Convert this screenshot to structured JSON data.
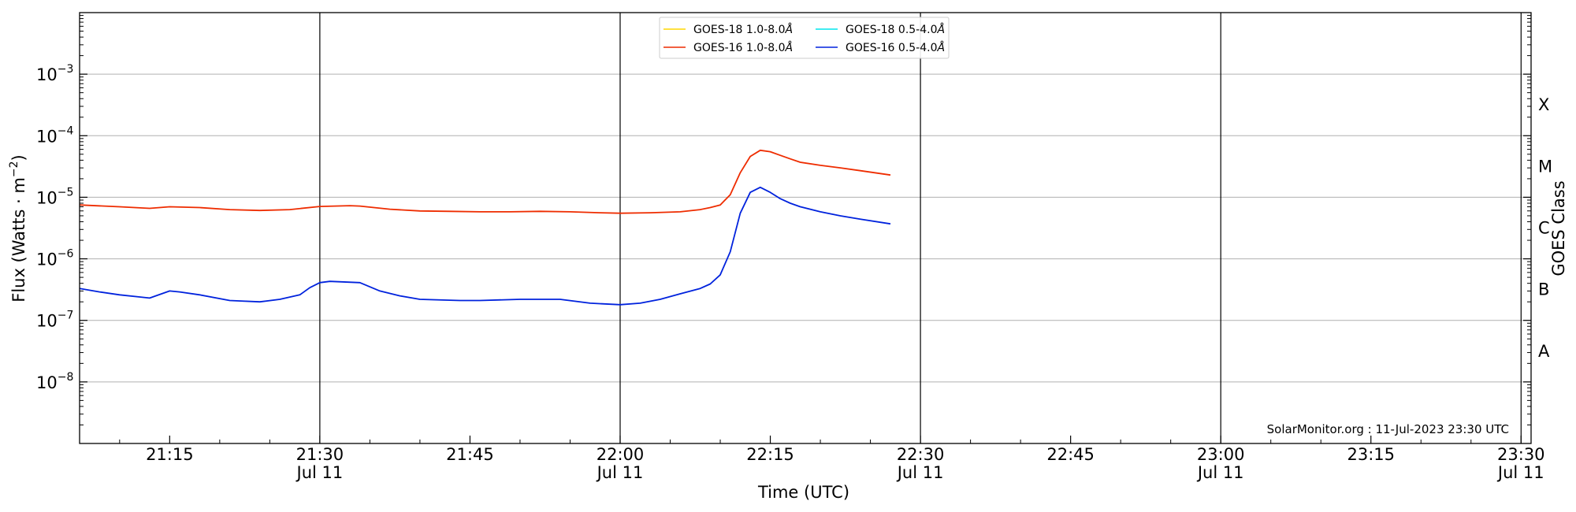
{
  "chart_data": {
    "type": "line",
    "xlabel": "Time (UTC)",
    "ylabel_main": "Flux (Watts · m",
    "ylabel_sup": "−2",
    "ylabel_close": ")",
    "y2label": "GOES Class",
    "yscale": "log",
    "xlim": [
      "21:06",
      "23:31"
    ],
    "ylim": [
      1e-09,
      0.01
    ],
    "grid": "horizontal",
    "legend_position": "top-center",
    "credit": "SolarMonitor.org : 11-Jul-2023 23:30 UTC",
    "x_ticks": [
      {
        "time": "21:15",
        "label": "21:15",
        "sublabel": ""
      },
      {
        "time": "21:30",
        "label": "21:30",
        "sublabel": "Jul 11"
      },
      {
        "time": "21:45",
        "label": "21:45",
        "sublabel": ""
      },
      {
        "time": "22:00",
        "label": "22:00",
        "sublabel": "Jul 11"
      },
      {
        "time": "22:15",
        "label": "22:15",
        "sublabel": ""
      },
      {
        "time": "22:30",
        "label": "22:30",
        "sublabel": "Jul 11"
      },
      {
        "time": "22:45",
        "label": "22:45",
        "sublabel": ""
      },
      {
        "time": "23:00",
        "label": "23:00",
        "sublabel": "Jul 11"
      },
      {
        "time": "23:15",
        "label": "23:15",
        "sublabel": ""
      },
      {
        "time": "23:30",
        "label": "23:30",
        "sublabel": "Jul 11"
      }
    ],
    "vertical_lines": [
      "21:30",
      "22:00",
      "22:30",
      "23:00",
      "23:30"
    ],
    "y_ticks": [
      {
        "value": 1e-08,
        "base": "10",
        "exp": "−8"
      },
      {
        "value": 1e-07,
        "base": "10",
        "exp": "−7"
      },
      {
        "value": 1e-06,
        "base": "10",
        "exp": "−6"
      },
      {
        "value": 1e-05,
        "base": "10",
        "exp": "−5"
      },
      {
        "value": 0.0001,
        "base": "10",
        "exp": "−4"
      },
      {
        "value": 0.001,
        "base": "10",
        "exp": "−3"
      }
    ],
    "goes_classes": [
      {
        "label": "A",
        "value": 3.16e-08
      },
      {
        "label": "B",
        "value": 3.16e-07
      },
      {
        "label": "C",
        "value": 3.16e-06
      },
      {
        "label": "M",
        "value": 3.16e-05
      },
      {
        "label": "X",
        "value": 0.000316
      }
    ],
    "legend": [
      {
        "label": "GOES-18 1.0-8.0",
        "unit": "Å",
        "color": "#ffd700"
      },
      {
        "label": "GOES-18 0.5-4.0",
        "unit": "Å",
        "color": "#00e5ee"
      },
      {
        "label": "GOES-16 1.0-8.0",
        "unit": "Å",
        "color": "#ee2c00"
      },
      {
        "label": "GOES-16 0.5-4.0",
        "unit": "Å",
        "color": "#0022dd"
      }
    ],
    "series": [
      {
        "name": "GOES-16 1.0-8.0Å",
        "color": "#ee2c00",
        "x": [
          "21:06",
          "21:10",
          "21:13",
          "21:15",
          "21:18",
          "21:21",
          "21:24",
          "21:27",
          "21:30",
          "21:33",
          "21:34",
          "21:37",
          "21:40",
          "21:43",
          "21:46",
          "21:49",
          "21:52",
          "21:55",
          "21:58",
          "22:00",
          "22:03",
          "22:06",
          "22:08",
          "22:09",
          "22:10",
          "22:11",
          "22:12",
          "22:13",
          "22:14",
          "22:15",
          "22:16",
          "22:17",
          "22:18",
          "22:20",
          "22:22",
          "22:24",
          "22:27"
        ],
        "values": [
          7.5e-06,
          7e-06,
          6.6e-06,
          7e-06,
          6.8e-06,
          6.3e-06,
          6.1e-06,
          6.3e-06,
          7.1e-06,
          7.3e-06,
          7.2e-06,
          6.4e-06,
          6e-06,
          5.9e-06,
          5.8e-06,
          5.8e-06,
          5.9e-06,
          5.8e-06,
          5.6e-06,
          5.5e-06,
          5.6e-06,
          5.8e-06,
          6.3e-06,
          6.8e-06,
          7.5e-06,
          1.1e-05,
          2.5e-05,
          4.6e-05,
          5.8e-05,
          5.5e-05,
          4.8e-05,
          4.2e-05,
          3.7e-05,
          3.3e-05,
          3e-05,
          2.7e-05,
          2.3e-05
        ]
      },
      {
        "name": "GOES-16 0.5-4.0Å",
        "color": "#0022dd",
        "x": [
          "21:06",
          "21:08",
          "21:10",
          "21:12",
          "21:13",
          "21:15",
          "21:16",
          "21:18",
          "21:21",
          "21:24",
          "21:26",
          "21:28",
          "21:29",
          "21:30",
          "21:31",
          "21:34",
          "21:36",
          "21:38",
          "21:40",
          "21:44",
          "21:46",
          "21:50",
          "21:52",
          "21:54",
          "21:57",
          "22:00",
          "22:02",
          "22:04",
          "22:06",
          "22:08",
          "22:09",
          "22:10",
          "22:11",
          "22:12",
          "22:13",
          "22:14",
          "22:15",
          "22:16",
          "22:17",
          "22:18",
          "22:20",
          "22:22",
          "22:24",
          "22:27"
        ],
        "values": [
          3.3e-07,
          2.9e-07,
          2.6e-07,
          2.4e-07,
          2.3e-07,
          3e-07,
          2.9e-07,
          2.6e-07,
          2.1e-07,
          2e-07,
          2.2e-07,
          2.6e-07,
          3.4e-07,
          4.1e-07,
          4.3e-07,
          4.1e-07,
          3e-07,
          2.5e-07,
          2.2e-07,
          2.1e-07,
          2.1e-07,
          2.2e-07,
          2.2e-07,
          2.2e-07,
          1.9e-07,
          1.8e-07,
          1.9e-07,
          2.2e-07,
          2.7e-07,
          3.3e-07,
          3.9e-07,
          5.5e-07,
          1.3e-06,
          5.5e-06,
          1.2e-05,
          1.45e-05,
          1.2e-05,
          9.5e-06,
          8e-06,
          7e-06,
          5.8e-06,
          5e-06,
          4.4e-06,
          3.7e-06
        ]
      }
    ]
  }
}
